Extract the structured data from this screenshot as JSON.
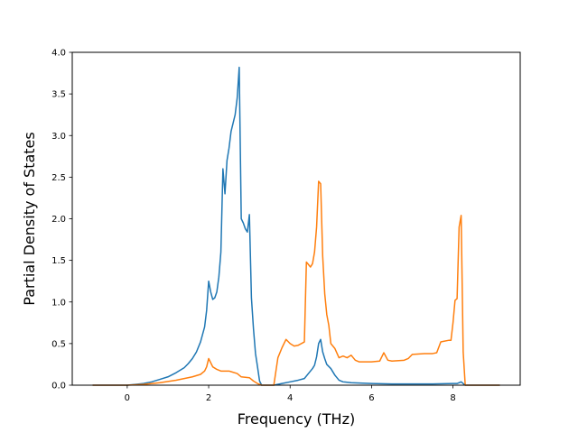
{
  "chart_data": {
    "type": "line",
    "xlabel": "Frequency (THz)",
    "ylabel": "Partial Density of States",
    "xlim": [
      -1.35,
      9.65
    ],
    "ylim": [
      0,
      4.0
    ],
    "xticks": [
      0,
      2,
      4,
      6,
      8
    ],
    "xtick_labels": [
      "0",
      "2",
      "4",
      "6",
      "8"
    ],
    "yticks": [
      0,
      0.5,
      1.0,
      1.5,
      2.0,
      2.5,
      3.0,
      3.5,
      4.0
    ],
    "ytick_labels": [
      "0.0",
      "0.5",
      "1.0",
      "1.5",
      "2.0",
      "2.5",
      "3.0",
      "3.5",
      "4.0"
    ],
    "grid": false,
    "series": [
      {
        "color": "#1f77b4",
        "x": [
          -0.85,
          0.0,
          0.2,
          0.4,
          0.6,
          0.8,
          1.0,
          1.2,
          1.4,
          1.5,
          1.6,
          1.7,
          1.8,
          1.9,
          1.95,
          2.0,
          2.05,
          2.1,
          2.15,
          2.2,
          2.25,
          2.3,
          2.35,
          2.4,
          2.45,
          2.5,
          2.55,
          2.6,
          2.65,
          2.7,
          2.75,
          2.8,
          2.85,
          2.9,
          2.95,
          3.0,
          3.05,
          3.1,
          3.15,
          3.2,
          3.25,
          3.3,
          3.4,
          3.6,
          3.8,
          4.0,
          4.2,
          4.35,
          4.45,
          4.5,
          4.55,
          4.6,
          4.65,
          4.7,
          4.75,
          4.8,
          4.85,
          4.9,
          5.0,
          5.1,
          5.2,
          5.3,
          5.5,
          6.0,
          6.5,
          7.0,
          7.5,
          8.0,
          8.1,
          8.2,
          8.25,
          8.3,
          9.15
        ],
        "y": [
          0.0,
          0.0,
          0.01,
          0.02,
          0.04,
          0.07,
          0.1,
          0.15,
          0.21,
          0.26,
          0.32,
          0.4,
          0.52,
          0.7,
          0.9,
          1.25,
          1.12,
          1.03,
          1.05,
          1.12,
          1.3,
          1.6,
          2.6,
          2.3,
          2.7,
          2.85,
          3.05,
          3.15,
          3.25,
          3.45,
          3.82,
          2.0,
          1.95,
          1.88,
          1.84,
          2.05,
          1.05,
          0.68,
          0.38,
          0.22,
          0.05,
          0.0,
          0.0,
          0.0,
          0.02,
          0.04,
          0.06,
          0.08,
          0.14,
          0.17,
          0.2,
          0.24,
          0.34,
          0.5,
          0.55,
          0.4,
          0.32,
          0.25,
          0.2,
          0.12,
          0.06,
          0.04,
          0.03,
          0.02,
          0.015,
          0.015,
          0.015,
          0.02,
          0.02,
          0.04,
          0.02,
          0.0,
          0.0
        ]
      },
      {
        "color": "#ff7f0e",
        "x": [
          -0.85,
          0.0,
          0.4,
          0.8,
          1.2,
          1.6,
          1.8,
          1.9,
          1.95,
          2.0,
          2.05,
          2.1,
          2.2,
          2.3,
          2.5,
          2.7,
          2.8,
          3.0,
          3.1,
          3.2,
          3.3,
          3.6,
          3.7,
          3.8,
          3.9,
          4.0,
          4.1,
          4.2,
          4.35,
          4.4,
          4.45,
          4.5,
          4.55,
          4.6,
          4.65,
          4.7,
          4.75,
          4.8,
          4.85,
          4.9,
          4.95,
          5.0,
          5.1,
          5.2,
          5.3,
          5.4,
          5.5,
          5.6,
          5.7,
          6.0,
          6.2,
          6.3,
          6.4,
          6.5,
          6.8,
          6.9,
          7.0,
          7.3,
          7.5,
          7.6,
          7.7,
          7.9,
          7.95,
          8.0,
          8.05,
          8.1,
          8.15,
          8.2,
          8.25,
          8.3,
          8.4,
          9.15
        ],
        "y": [
          0.0,
          0.0,
          0.01,
          0.03,
          0.06,
          0.1,
          0.13,
          0.17,
          0.22,
          0.32,
          0.27,
          0.22,
          0.19,
          0.17,
          0.17,
          0.14,
          0.1,
          0.09,
          0.05,
          0.02,
          0.0,
          0.0,
          0.33,
          0.45,
          0.55,
          0.5,
          0.47,
          0.48,
          0.52,
          1.48,
          1.45,
          1.42,
          1.46,
          1.6,
          1.9,
          2.45,
          2.42,
          1.55,
          1.1,
          0.85,
          0.72,
          0.5,
          0.44,
          0.33,
          0.35,
          0.33,
          0.36,
          0.3,
          0.28,
          0.28,
          0.29,
          0.39,
          0.3,
          0.29,
          0.3,
          0.32,
          0.37,
          0.38,
          0.38,
          0.39,
          0.52,
          0.54,
          0.54,
          0.75,
          1.02,
          1.04,
          1.9,
          2.04,
          0.4,
          0.0,
          0.0,
          0.0
        ]
      }
    ]
  }
}
